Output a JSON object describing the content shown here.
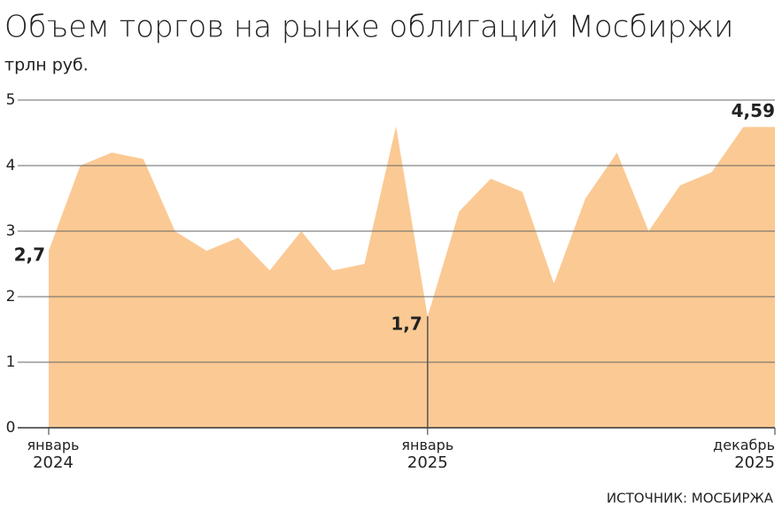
{
  "chart_data": {
    "type": "area",
    "title": "Объем торгов на рынке облигаций Мосбиржи",
    "subtitle": "трлн руб.",
    "source": "ИСТОЧНИК: МОСБИРЖА",
    "categories": [
      "январь 2024",
      null,
      null,
      null,
      null,
      null,
      null,
      null,
      null,
      null,
      null,
      null,
      "январь 2025",
      null,
      null,
      null,
      null,
      null,
      null,
      null,
      null,
      null,
      null,
      "декабрь 2025"
    ],
    "values": [
      2.7,
      4.0,
      4.2,
      4.1,
      3.0,
      2.7,
      2.9,
      2.4,
      3.0,
      2.4,
      2.5,
      4.6,
      1.7,
      3.3,
      3.8,
      3.6,
      2.2,
      3.5,
      4.2,
      3.0,
      3.7,
      3.9,
      4.59,
      4.59
    ],
    "value_labels": [
      "2,7",
      null,
      null,
      null,
      null,
      null,
      null,
      null,
      null,
      null,
      null,
      null,
      "1,7",
      null,
      null,
      null,
      null,
      null,
      null,
      null,
      null,
      null,
      null,
      "4,59"
    ],
    "color": "#fbc994",
    "ylim": [
      0,
      5
    ],
    "yticks": [
      0,
      1,
      2,
      3,
      4,
      5
    ],
    "grid": true
  }
}
